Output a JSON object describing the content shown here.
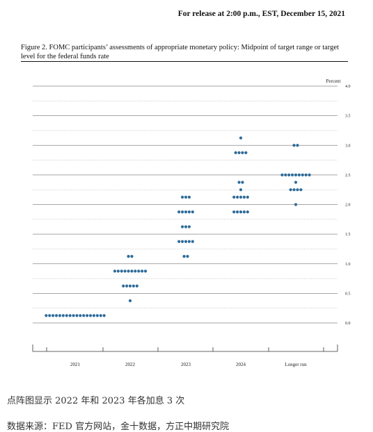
{
  "header": {
    "release": "For release at 2:00 p.m., EST, December 15, 2021",
    "figure_title": "Figure 2.  FOMC participants’ assessments of appropriate monetary policy:  Midpoint of target range or target level for the federal funds rate"
  },
  "chart_data": {
    "type": "scatter",
    "ylabel": "Percent",
    "categories": [
      "2021",
      "2022",
      "2023",
      "2024",
      "Longer run"
    ],
    "ylim": [
      0,
      4
    ],
    "yticks": [
      "0.0",
      "0.5",
      "1.0",
      "1.5",
      "2.0",
      "2.5",
      "3.0",
      "3.5",
      "4.0"
    ],
    "grid": true,
    "dot_color": "#2e6b99",
    "points": [
      {
        "category": "2021",
        "y": 0.125,
        "count": 18
      },
      {
        "category": "2022",
        "y": 0.375,
        "count": 1
      },
      {
        "category": "2022",
        "y": 0.625,
        "count": 5
      },
      {
        "category": "2022",
        "y": 0.875,
        "count": 10
      },
      {
        "category": "2022",
        "y": 1.125,
        "count": 2
      },
      {
        "category": "2023",
        "y": 1.125,
        "count": 2
      },
      {
        "category": "2023",
        "y": 1.375,
        "count": 5
      },
      {
        "category": "2023",
        "y": 1.625,
        "count": 3
      },
      {
        "category": "2023",
        "y": 1.875,
        "count": 5
      },
      {
        "category": "2023",
        "y": 2.125,
        "count": 3
      },
      {
        "category": "2024",
        "y": 1.875,
        "count": 5
      },
      {
        "category": "2024",
        "y": 2.125,
        "count": 5
      },
      {
        "category": "2024",
        "y": 2.25,
        "count": 1
      },
      {
        "category": "2024",
        "y": 2.375,
        "count": 2
      },
      {
        "category": "2024",
        "y": 2.875,
        "count": 4
      },
      {
        "category": "2024",
        "y": 3.125,
        "count": 1
      },
      {
        "category": "Longer run",
        "y": 2.0,
        "count": 1
      },
      {
        "category": "Longer run",
        "y": 2.25,
        "count": 4
      },
      {
        "category": "Longer run",
        "y": 2.375,
        "count": 1
      },
      {
        "category": "Longer run",
        "y": 2.5,
        "count": 9
      },
      {
        "category": "Longer run",
        "y": 3.0,
        "count": 2
      }
    ]
  },
  "captions": {
    "line1": "点阵图显示 2022 年和 2023 年各加息 3 次",
    "line2": "数据来源：FED 官方网站，金十数据，方正中期研究院"
  }
}
